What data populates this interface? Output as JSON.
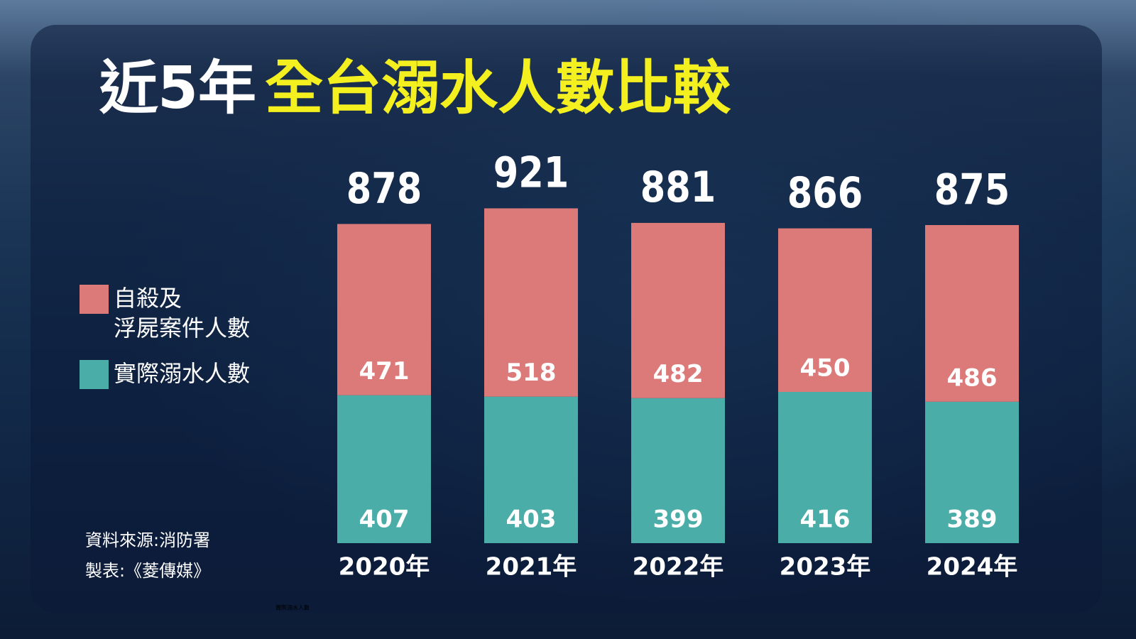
{
  "chart_data": {
    "type": "stacked_bar",
    "title": "近5年",
    "title_highlight": "全台溺水人數比較",
    "categories": [
      "2020年",
      "2021年",
      "2022年",
      "2023年",
      "2024年"
    ],
    "series": [
      {
        "name": "實際溺水人數",
        "color": "#4aada8",
        "values": [
          407,
          403,
          399,
          416,
          389
        ]
      },
      {
        "name": "自殺及\n浮屍案件人數",
        "color": "#dc7a7a",
        "values": [
          471,
          518,
          482,
          450,
          486
        ]
      }
    ],
    "totals": [
      878,
      921,
      881,
      866,
      875
    ],
    "ylim": [
      0,
      1000
    ],
    "source": "資料來源:消防署",
    "credit": "製表:《菱傳媒》",
    "footnote": "實際溺水人數"
  }
}
